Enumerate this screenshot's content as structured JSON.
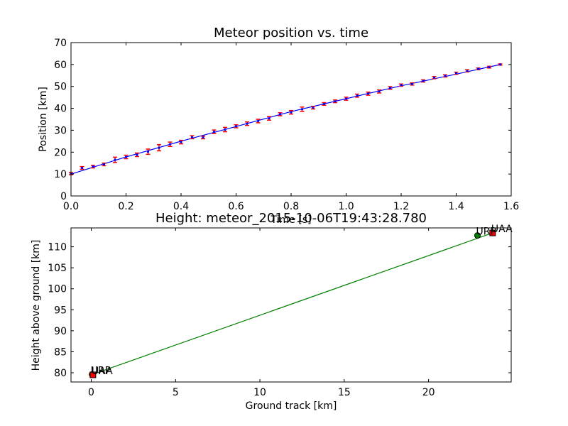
{
  "chart_data": [
    {
      "type": "scatter",
      "title": "Meteor position vs. time",
      "xlabel": "Time [s]",
      "ylabel": "Position [km]",
      "xlim": [
        0.0,
        1.6
      ],
      "ylim": [
        0,
        70
      ],
      "xticks": [
        "0.0",
        "0.2",
        "0.4",
        "0.6",
        "0.8",
        "1.0",
        "1.2",
        "1.4",
        "1.6"
      ],
      "yticks": [
        "0",
        "10",
        "20",
        "30",
        "40",
        "50",
        "60",
        "70"
      ],
      "grid": false,
      "colors": {
        "points": "#ff0000",
        "fit": "#0000ff"
      },
      "series": [
        {
          "role": "points",
          "x": [
            0.0,
            0.04,
            0.08,
            0.12,
            0.16,
            0.2,
            0.24,
            0.28,
            0.32,
            0.36,
            0.4,
            0.44,
            0.48,
            0.52,
            0.56,
            0.6,
            0.64,
            0.68,
            0.72,
            0.76,
            0.8,
            0.84,
            0.88,
            0.92,
            0.96,
            1.0,
            1.04,
            1.08,
            1.12,
            1.16,
            1.2,
            1.24,
            1.28,
            1.32,
            1.36,
            1.4,
            1.44,
            1.48,
            1.52,
            1.56
          ],
          "y": [
            10.2,
            12.8,
            13.4,
            14.4,
            16.5,
            17.8,
            18.8,
            20.2,
            22.0,
            23.6,
            24.6,
            26.8,
            26.7,
            29.3,
            30.3,
            31.8,
            33.0,
            34.2,
            35.4,
            37.3,
            38.2,
            39.6,
            40.3,
            42.0,
            43.2,
            44.4,
            45.8,
            46.7,
            47.7,
            49.3,
            50.6,
            51.1,
            52.5,
            54.0,
            54.8,
            56.0,
            57.1,
            58.0,
            58.8,
            60.0
          ],
          "err": [
            0.5,
            0.6,
            0.6,
            0.6,
            1.2,
            0.8,
            0.8,
            1.2,
            1.4,
            1.0,
            0.8,
            0.7,
            0.6,
            0.8,
            1.0,
            0.7,
            0.8,
            0.8,
            0.8,
            0.7,
            0.8,
            1.0,
            0.6,
            0.6,
            0.6,
            0.7,
            0.7,
            0.7,
            0.7,
            0.6,
            0.5,
            0.5,
            0.5,
            0.5,
            0.5,
            0.5,
            0.5,
            0.4,
            0.4,
            0.3
          ]
        },
        {
          "role": "fit",
          "x": [
            0.0,
            0.2,
            0.4,
            0.6,
            0.8,
            1.0,
            1.2,
            1.4,
            1.56
          ],
          "y": [
            10.0,
            17.8,
            25.0,
            31.7,
            38.5,
            44.4,
            50.3,
            55.6,
            60.0
          ]
        }
      ]
    },
    {
      "type": "scatter",
      "title": "Height: meteor_2015-10-06T19:43:28.780",
      "xlabel": "Ground track [km]",
      "ylabel": "Height above ground [km]",
      "xlim": [
        -1.2,
        24.9
      ],
      "ylim": [
        77.8,
        114.5
      ],
      "xticks": [
        "0",
        "5",
        "10",
        "15",
        "20"
      ],
      "yticks": [
        "80",
        "85",
        "90",
        "95",
        "100",
        "105",
        "110"
      ],
      "grid": false,
      "colors": {
        "track": "#008000",
        "station_red": "#ff0000",
        "station_green": "#008000"
      },
      "track_line": {
        "x": [
          0.0,
          23.8
        ],
        "y": [
          79.5,
          113.3
        ]
      },
      "stations": [
        {
          "label": "URP",
          "x": 0.05,
          "y": 79.6,
          "color": "#008000"
        },
        {
          "label": "UAA",
          "x": 0.1,
          "y": 79.5,
          "color": "#ff0000"
        },
        {
          "label": "URP",
          "x": 22.9,
          "y": 112.7,
          "color": "#008000"
        },
        {
          "label": "UAA",
          "x": 23.8,
          "y": 113.3,
          "color": "#ff0000"
        }
      ]
    }
  ]
}
